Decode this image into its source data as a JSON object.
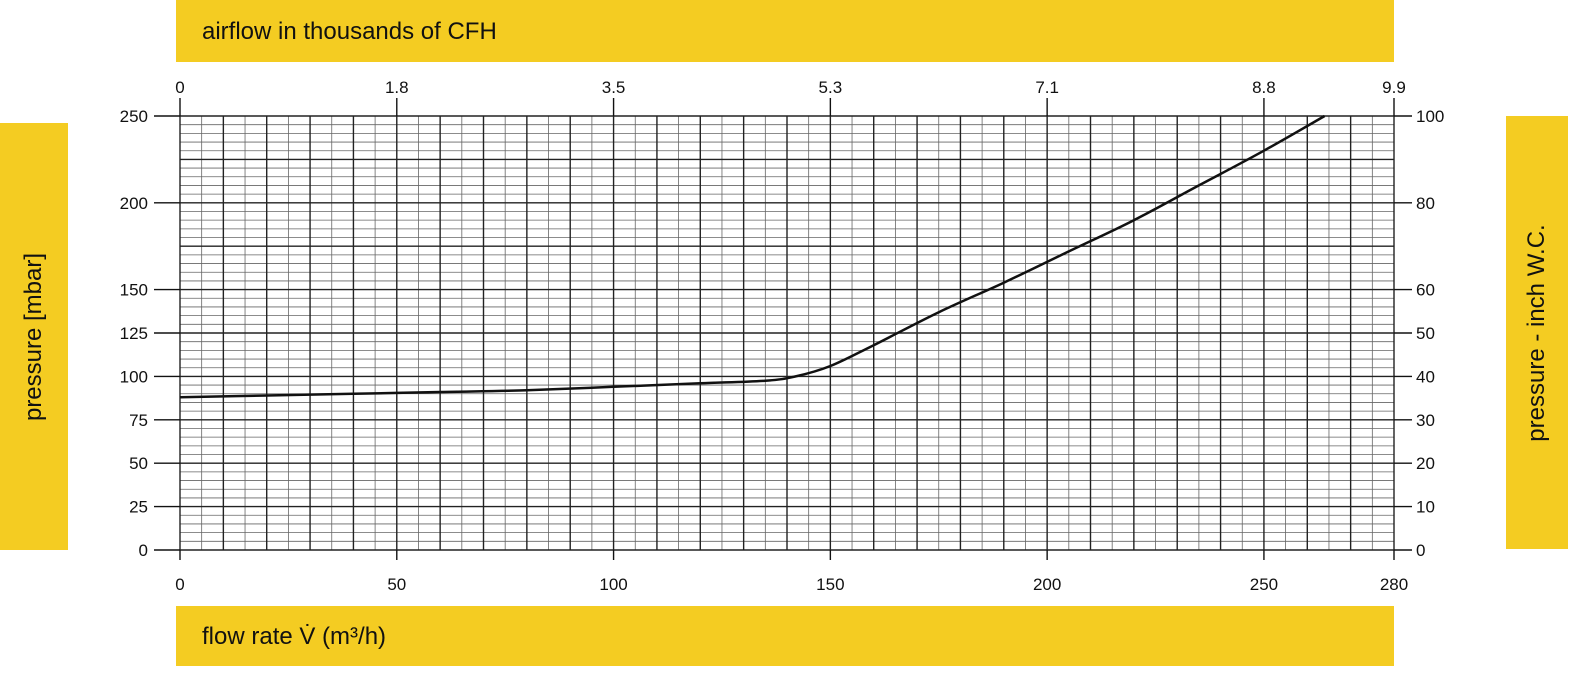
{
  "chart_data": {
    "type": "line",
    "top_axis": {
      "label": "airflow in thousands of CFH",
      "ticks": [
        "0",
        "1.8",
        "3.5",
        "5.3",
        "7.1",
        "8.8",
        "9.9"
      ],
      "tick_positions_m3h": [
        0,
        50,
        100,
        150,
        200,
        250,
        280
      ]
    },
    "x_axis": {
      "label": "flow rate V̇  (m³/h)",
      "range": [
        0,
        280
      ],
      "ticks": [
        0,
        50,
        100,
        150,
        200,
        250,
        280
      ]
    },
    "y_left": {
      "label": "pressure [mbar]",
      "range": [
        0,
        250
      ],
      "ticks": [
        0,
        25,
        50,
        75,
        100,
        125,
        150,
        200,
        250
      ]
    },
    "y_right": {
      "label": "pressure - inch W.C.",
      "range": [
        0,
        100
      ],
      "ticks": [
        0,
        10,
        20,
        30,
        40,
        50,
        60,
        80,
        100
      ]
    },
    "grid": true,
    "series": [
      {
        "x": [
          0,
          20,
          40,
          60,
          80,
          100,
          120,
          135,
          142,
          150,
          160,
          175,
          190,
          205,
          220,
          235,
          250,
          264
        ],
        "y": [
          88,
          89,
          90,
          91,
          92,
          94,
          96,
          97.5,
          100,
          106,
          118,
          137,
          154,
          172,
          190,
          210,
          230,
          250
        ]
      }
    ]
  }
}
